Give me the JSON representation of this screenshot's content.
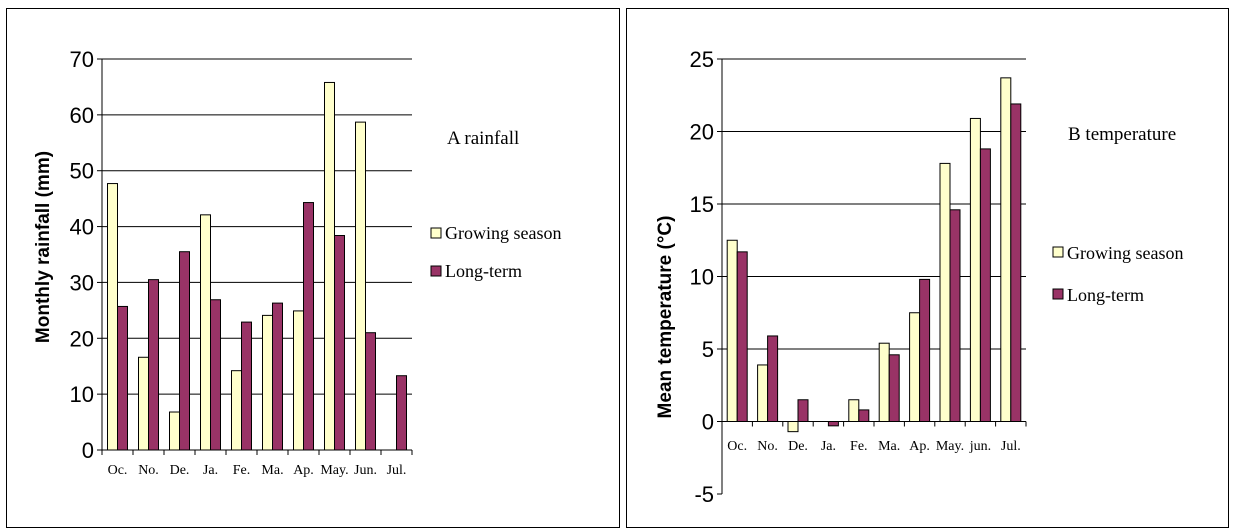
{
  "chart_data": [
    {
      "type": "bar",
      "title": "A rainfall",
      "ylabel": "Monthly rainfall (mm)",
      "xlabel": "",
      "categories": [
        "Oc.",
        "No.",
        "De.",
        "Ja.",
        "Fe.",
        "Ma.",
        "Ap.",
        "May.",
        "Jun.",
        "Jul."
      ],
      "series": [
        {
          "name": "Growing season",
          "values": [
            47.7,
            16.6,
            6.8,
            42.1,
            14.2,
            24.1,
            24.9,
            65.8,
            58.7,
            0
          ],
          "color": "#ffffcc"
        },
        {
          "name": "Long-term",
          "values": [
            25.7,
            30.5,
            35.5,
            26.9,
            22.9,
            26.3,
            44.3,
            38.4,
            21.0,
            13.3
          ],
          "color": "#993366"
        }
      ],
      "ylim": [
        0,
        70
      ],
      "yticks": [
        0,
        10,
        20,
        30,
        40,
        50,
        60,
        70
      ],
      "grid": true,
      "legend_position": "right"
    },
    {
      "type": "bar",
      "title": "B temperature",
      "ylabel": "Mean temperature (°C)",
      "xlabel": "",
      "categories": [
        "Oc.",
        "No.",
        "De.",
        "Ja.",
        "Fe.",
        "Ma.",
        "Ap.",
        "May.",
        "jun.",
        "Jul."
      ],
      "series": [
        {
          "name": "Growing season",
          "values": [
            12.5,
            3.9,
            -0.7,
            0.0,
            1.5,
            5.4,
            7.5,
            17.8,
            20.9,
            23.7
          ],
          "color": "#ffffcc"
        },
        {
          "name": "Long-term",
          "values": [
            11.7,
            5.9,
            1.5,
            -0.3,
            0.8,
            4.6,
            9.8,
            14.6,
            18.8,
            21.9
          ],
          "color": "#993366"
        }
      ],
      "ylim": [
        -5,
        25
      ],
      "yticks": [
        -5,
        0,
        5,
        10,
        15,
        20,
        25
      ],
      "grid": true,
      "legend_position": "right"
    }
  ]
}
